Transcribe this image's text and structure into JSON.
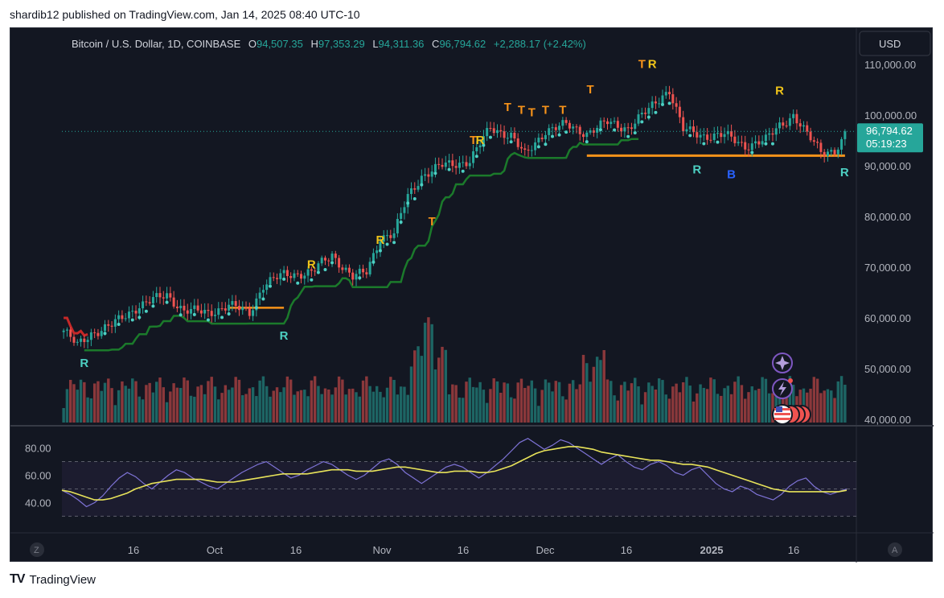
{
  "caption": "shardib12 published on TradingView.com, Jan 14, 2025 08:40 UTC-10",
  "brand": {
    "logo": "TV",
    "name": "TradingView"
  },
  "colors": {
    "background": "#131722",
    "up": "#26a69a",
    "down": "#ef5350",
    "trail": "#1b7a2b",
    "level": "#f7931a",
    "rsi": "#7e73d6",
    "rsi_ma": "#e8e35a",
    "label_T": "#f7931a",
    "label_R": "#f0c419",
    "label_R2": "#4dd0c3",
    "label_B": "#2962ff"
  },
  "header": {
    "symbol": "Bitcoin / U.S. Dollar, 1D, COINBASE",
    "o_label": "O",
    "o": "94,507.35",
    "h_label": "H",
    "h": "97,353.29",
    "l_label": "L",
    "l": "94,311.36",
    "c_label": "C",
    "c": "96,794.62",
    "change": "+2,288.17 (+2.42%)"
  },
  "currency_button": "USD",
  "price_tag": {
    "price": "96,794.62",
    "countdown": "05:19:23"
  },
  "corner_left": "Z",
  "corner_right": "A",
  "icons": [
    "sparkle-icon",
    "lightning-icon",
    "us-flag-icon"
  ],
  "chart_data": [
    {
      "type": "candlestick",
      "title": "Bitcoin / U.S. Dollar, 1D, COINBASE",
      "y_axis": {
        "ticks": [
          "40,000.00",
          "50,000.00",
          "60,000.00",
          "70,000.00",
          "80,000.00",
          "90,000.00",
          "100,000.00",
          "110,000.00"
        ],
        "range": [
          40000,
          112000
        ]
      },
      "x_axis": {
        "ticks": [
          "16",
          "Oct",
          "16",
          "Nov",
          "16",
          "Dec",
          "16",
          "2025",
          "16"
        ]
      },
      "last_price": 96794.62,
      "key_levels": [
        {
          "name": "support",
          "value": 92000,
          "from": "Dec",
          "to": "Jan 14"
        },
        {
          "name": "support",
          "value": 62000,
          "from": "Oct",
          "to": "Oct 16"
        }
      ],
      "annotations": [
        {
          "text": "R",
          "near": 53800,
          "position": "below"
        },
        {
          "text": "R",
          "near": 59200,
          "position": "below"
        },
        {
          "text": "R",
          "near": 68500,
          "position": "above"
        },
        {
          "text": "R",
          "near": 73300,
          "position": "above"
        },
        {
          "text": "T",
          "near": 77000,
          "position": "above"
        },
        {
          "text": "T",
          "near": 93000,
          "position": "above"
        },
        {
          "text": "R",
          "near": 93000,
          "position": "above"
        },
        {
          "text": "T",
          "near": 99500,
          "position": "above"
        },
        {
          "text": "T",
          "near": 99000,
          "position": "above"
        },
        {
          "text": "T",
          "near": 98500,
          "position": "above"
        },
        {
          "text": "T",
          "near": 99000,
          "position": "above"
        },
        {
          "text": "T",
          "near": 99000,
          "position": "above"
        },
        {
          "text": "T",
          "near": 103000,
          "position": "above"
        },
        {
          "text": "T",
          "near": 108000,
          "position": "above"
        },
        {
          "text": "R",
          "near": 108000,
          "position": "above"
        },
        {
          "text": "R",
          "near": 92000,
          "position": "below"
        },
        {
          "text": "B",
          "near": 91000,
          "position": "below"
        },
        {
          "text": "R",
          "near": 102800,
          "position": "above"
        },
        {
          "text": "R",
          "near": 89500,
          "position": "right"
        }
      ],
      "volume": {
        "shown": true,
        "up_color": "#26a69a",
        "down_color": "#ef5350"
      }
    },
    {
      "type": "line",
      "title": "",
      "y_axis": {
        "ticks": [
          "40.00",
          "60.00",
          "80.00"
        ],
        "range": [
          25,
          90
        ]
      },
      "bands": [
        70,
        50,
        30
      ],
      "series": [
        {
          "name": "",
          "color": "#7e73d6",
          "values": [
            49,
            46,
            42,
            37,
            40,
            45,
            52,
            58,
            62,
            59,
            54,
            50,
            55,
            60,
            64,
            62,
            58,
            55,
            52,
            50,
            54,
            58,
            62,
            65,
            68,
            70,
            66,
            62,
            58,
            60,
            64,
            67,
            70,
            68,
            64,
            60,
            57,
            60,
            65,
            70,
            72,
            68,
            62,
            58,
            54,
            58,
            62,
            66,
            68,
            66,
            62,
            58,
            62,
            67,
            72,
            78,
            84,
            87,
            83,
            79,
            82,
            86,
            84,
            80,
            76,
            72,
            68,
            72,
            75,
            70,
            66,
            64,
            68,
            70,
            67,
            62,
            60,
            64,
            66,
            60,
            54,
            50,
            48,
            52,
            50,
            46,
            44,
            42,
            46,
            52,
            56,
            58,
            52,
            48,
            46,
            48,
            50
          ]
        },
        {
          "name": "",
          "color": "#e8e35a",
          "values": [
            49,
            48,
            46,
            44,
            42,
            42,
            43,
            45,
            47,
            50,
            52,
            54,
            55,
            56,
            57,
            57,
            57,
            57,
            56,
            55,
            55,
            55,
            56,
            57,
            58,
            59,
            60,
            61,
            61,
            61,
            61,
            62,
            63,
            64,
            64,
            64,
            63,
            63,
            63,
            64,
            65,
            66,
            66,
            65,
            64,
            63,
            62,
            62,
            63,
            63,
            63,
            62,
            62,
            63,
            65,
            67,
            70,
            73,
            76,
            78,
            79,
            80,
            81,
            81,
            80,
            79,
            77,
            76,
            75,
            74,
            73,
            72,
            71,
            71,
            70,
            69,
            68,
            68,
            67,
            66,
            64,
            62,
            60,
            58,
            56,
            54,
            52,
            50,
            49,
            48,
            48,
            48,
            48,
            48,
            48,
            48,
            49
          ]
        }
      ]
    }
  ]
}
